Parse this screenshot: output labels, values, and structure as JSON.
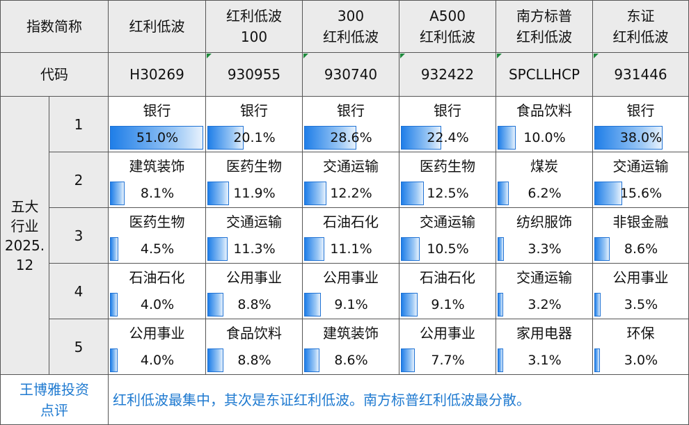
{
  "header_label": "指数简称",
  "code_label": "代码",
  "section_label": "五大\n行业\n2025.\n12",
  "ranks": [
    1,
    2,
    3,
    4,
    5
  ],
  "columns": [
    {
      "name": "红利低波",
      "code": "H30269",
      "industries": [
        "银行",
        "建筑装饰",
        "医药生物",
        "石油石化",
        "公用事业"
      ],
      "values": [
        51.0,
        8.1,
        4.5,
        4.0,
        4.0
      ],
      "value_labels": [
        "51.0%",
        "8.1%",
        "4.5%",
        "4.0%",
        "4.0%"
      ]
    },
    {
      "name": "红利低波\n100",
      "code": "930955",
      "industries": [
        "银行",
        "医药生物",
        "交通运输",
        "公用事业",
        "食品饮料"
      ],
      "values": [
        20.1,
        11.9,
        11.3,
        8.8,
        8.8
      ],
      "value_labels": [
        "20.1%",
        "11.9%",
        "11.3%",
        "8.8%",
        "8.8%"
      ]
    },
    {
      "name": "300\n红利低波",
      "code": "930740",
      "industries": [
        "银行",
        "交通运输",
        "石油石化",
        "公用事业",
        "建筑装饰"
      ],
      "values": [
        28.6,
        12.2,
        11.1,
        9.1,
        8.6
      ],
      "value_labels": [
        "28.6%",
        "12.2%",
        "11.1%",
        "9.1%",
        "8.6%"
      ]
    },
    {
      "name": "A500\n红利低波",
      "code": "932422",
      "industries": [
        "银行",
        "医药生物",
        "交通运输",
        "石油石化",
        "公用事业"
      ],
      "values": [
        22.4,
        12.5,
        10.5,
        9.1,
        7.7
      ],
      "value_labels": [
        "22.4%",
        "12.5%",
        "10.5%",
        "9.1%",
        "7.7%"
      ]
    },
    {
      "name": "南方标普\n红利低波",
      "code": "SPCLLHCP",
      "industries": [
        "食品饮料",
        "煤炭",
        "纺织服饰",
        "交通运输",
        "家用电器"
      ],
      "values": [
        10.0,
        6.2,
        3.3,
        3.2,
        3.1
      ],
      "value_labels": [
        "10.0%",
        "6.2%",
        "3.3%",
        "3.2%",
        "3.1%"
      ]
    },
    {
      "name": "东证\n红利低波",
      "code": "931446",
      "industries": [
        "银行",
        "交通运输",
        "非银金融",
        "公用事业",
        "环保"
      ],
      "values": [
        38.0,
        15.6,
        8.6,
        3.5,
        3.0
      ],
      "value_labels": [
        "38.0%",
        "15.6%",
        "8.6%",
        "3.5%",
        "3.0%"
      ]
    }
  ],
  "comment_label": "王博雅投资\n点评",
  "comment": "红利低波最集中，其次是东证红利低波。南方标普红利低波最分散。"
}
